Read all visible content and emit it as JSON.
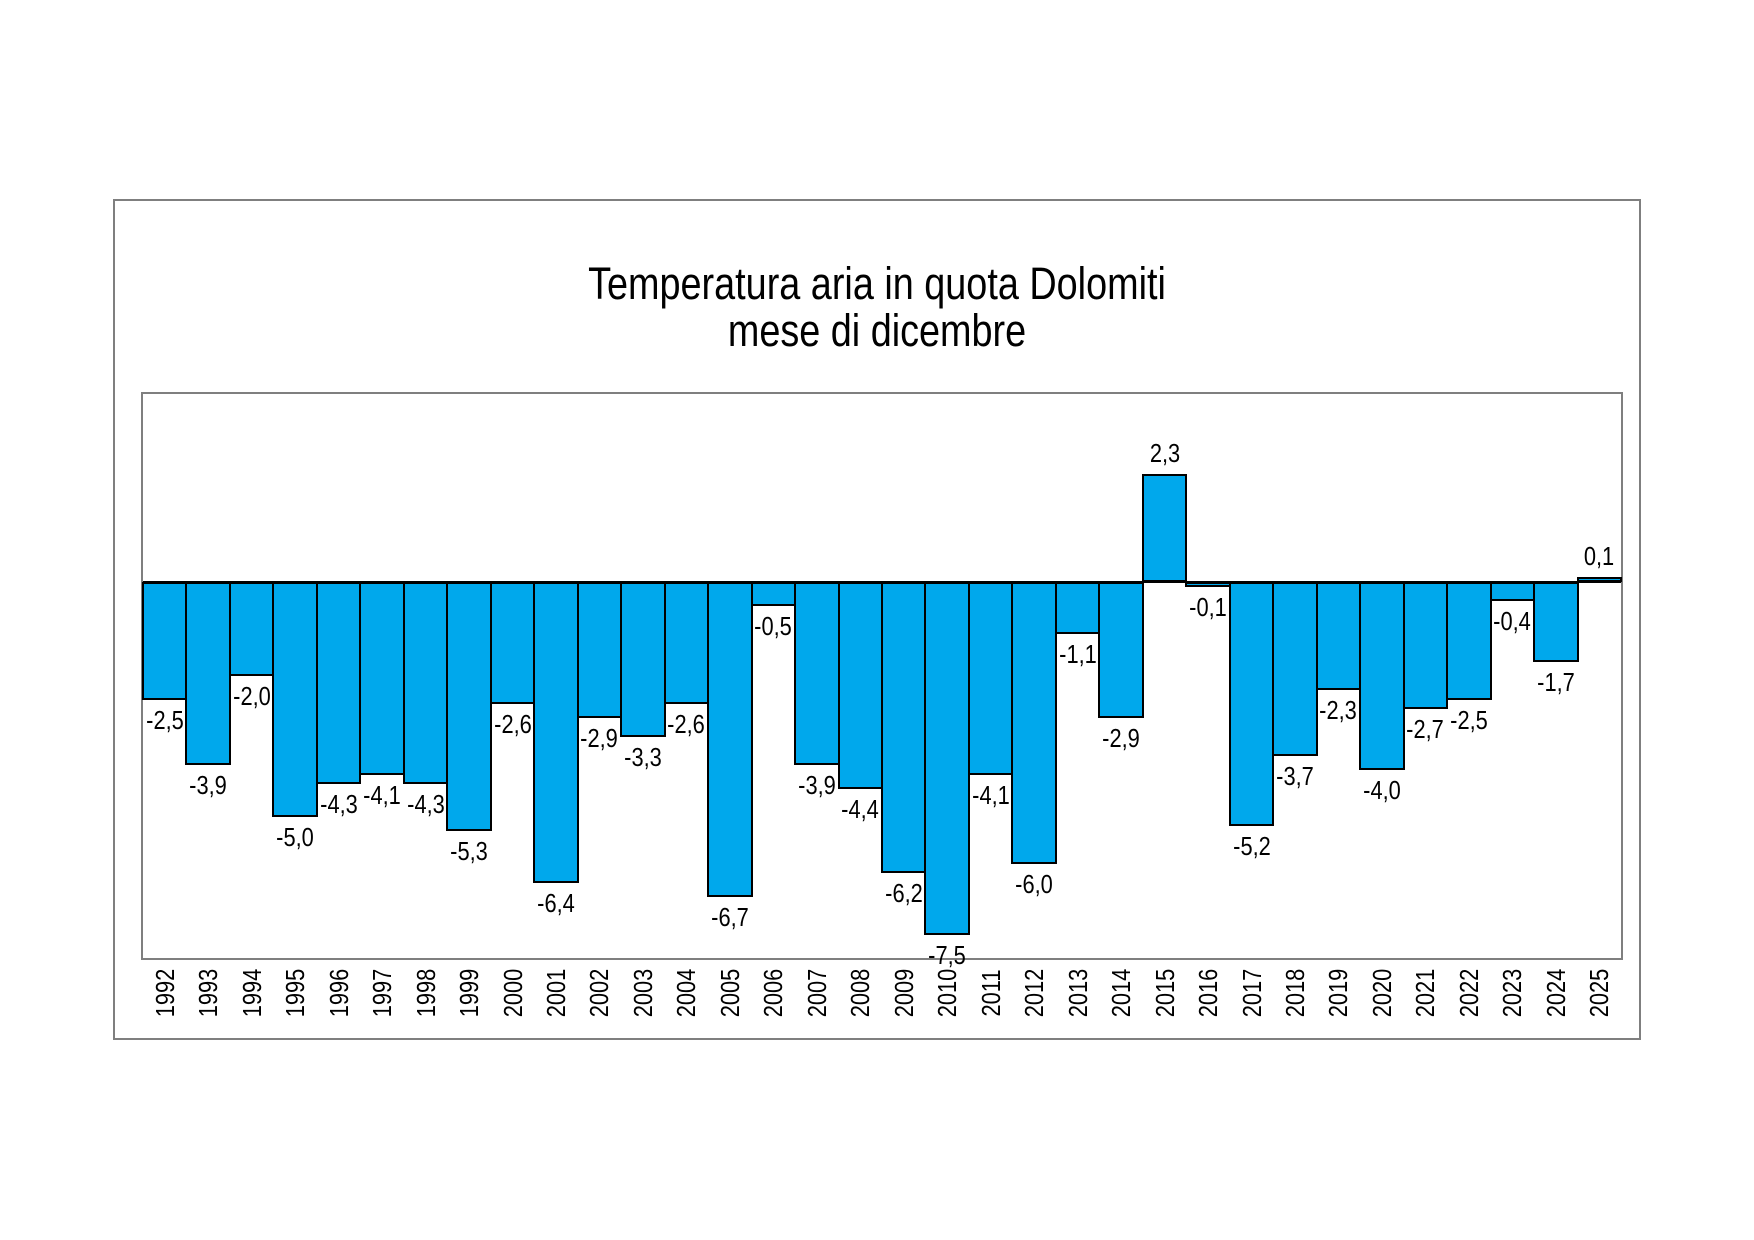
{
  "page": {
    "background": "#ffffff"
  },
  "chart": {
    "title_line1": "Temperatura aria in quota Dolomiti",
    "title_line2": "mese di dicembre",
    "colors": {
      "bar_fill": "#00A8EC",
      "bar_border": "#000000",
      "frame_border": "#7f7f7f",
      "axis_line": "#000000",
      "text": "#000000"
    }
  },
  "chart_data": {
    "type": "bar",
    "title": "Temperatura aria in quota Dolomiti mese di dicembre",
    "xlabel": "",
    "ylabel": "",
    "ylim": [
      -8,
      4
    ],
    "grid": false,
    "legend": false,
    "decimal_separator": ",",
    "bar_color": "#00A8EC",
    "categories": [
      "1992",
      "1993",
      "1994",
      "1995",
      "1996",
      "1997",
      "1998",
      "1999",
      "2000",
      "2001",
      "2002",
      "2003",
      "2004",
      "2005",
      "2006",
      "2007",
      "2008",
      "2009",
      "2010",
      "2011",
      "2012",
      "2013",
      "2014",
      "2015",
      "2016",
      "2017",
      "2018",
      "2019",
      "2020",
      "2021",
      "2022",
      "2023",
      "2024",
      "2025"
    ],
    "values": [
      -2.5,
      -3.9,
      -2.0,
      -5.0,
      -4.3,
      -4.1,
      -4.3,
      -5.3,
      -2.6,
      -6.4,
      -2.9,
      -3.3,
      -2.6,
      -6.7,
      -0.5,
      -3.9,
      -4.4,
      -6.2,
      -7.5,
      -4.1,
      -6.0,
      -1.1,
      -2.9,
      2.3,
      -0.1,
      -5.2,
      -3.7,
      -2.3,
      -4.0,
      -2.7,
      -2.5,
      -0.4,
      -1.7,
      0.1
    ],
    "value_labels": [
      "-2,5",
      "-3,9",
      "-2,0",
      "-5,0",
      "-4,3",
      "-4,1",
      "-4,3",
      "-5,3",
      "-2,6",
      "-6,4",
      "-2,9",
      "-3,3",
      "-2,6",
      "-6,7",
      "-0,5",
      "-3,9",
      "-4,4",
      "-6,2",
      "-7,5",
      "-4,1",
      "-6,0",
      "-1,1",
      "-2,9",
      "2,3",
      "-0,1",
      "-5,2",
      "-3,7",
      "-2,3",
      "-4,0",
      "-2,7",
      "-2,5",
      "-0,4",
      "-1,7",
      "0,1"
    ]
  }
}
